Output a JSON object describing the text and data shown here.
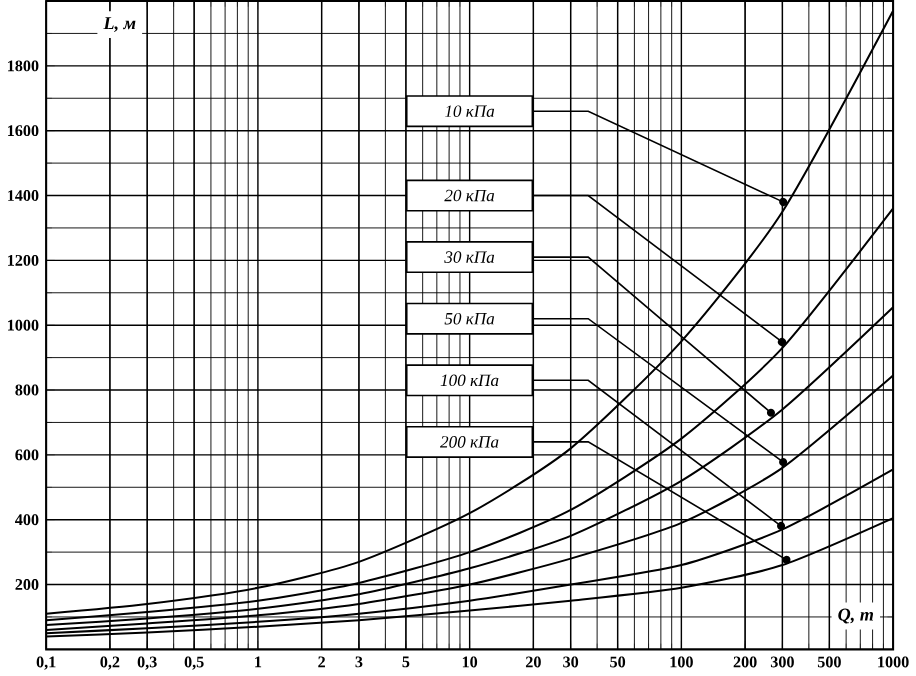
{
  "chart_data": {
    "type": "line",
    "xlabel": "Q, т",
    "ylabel": "L, м",
    "log": "x",
    "grid": true,
    "line_style": "solid",
    "xlim": [
      0.1,
      1000
    ],
    "ylim": [
      0,
      2000
    ],
    "xticks": [
      {
        "value": 0.1,
        "label": "0,1"
      },
      {
        "value": 0.2,
        "label": "0,2"
      },
      {
        "value": 0.3,
        "label": "0,3"
      },
      {
        "value": 0.5,
        "label": "0,5"
      },
      1,
      2,
      3,
      5,
      10,
      20,
      30,
      50,
      100,
      200,
      300,
      500,
      1000
    ],
    "yticks": [
      200,
      400,
      600,
      800,
      1000,
      1200,
      1400,
      1600,
      1800
    ],
    "x": [
      0.1,
      0.3,
      1,
      3,
      10,
      30,
      100,
      300,
      1000
    ],
    "series": [
      {
        "name": "10 кПа",
        "color": "#000000",
        "values": [
          110,
          140,
          190,
          270,
          420,
          620,
          950,
          1350,
          1970
        ]
      },
      {
        "name": "20 кПа",
        "color": "#000000",
        "values": [
          90,
          115,
          150,
          205,
          300,
          430,
          650,
          930,
          1360
        ]
      },
      {
        "name": "30 кПа",
        "color": "#000000",
        "values": [
          75,
          95,
          125,
          170,
          250,
          350,
          520,
          740,
          1055
        ]
      },
      {
        "name": "50 кПа",
        "color": "#000000",
        "values": [
          60,
          80,
          105,
          140,
          200,
          280,
          390,
          560,
          845
        ]
      },
      {
        "name": "100 кПа",
        "color": "#000000",
        "values": [
          50,
          65,
          85,
          110,
          150,
          200,
          260,
          370,
          555
        ]
      },
      {
        "name": "200 кПа",
        "color": "#000000",
        "values": [
          40,
          52,
          70,
          90,
          120,
          150,
          190,
          260,
          405
        ]
      }
    ]
  }
}
